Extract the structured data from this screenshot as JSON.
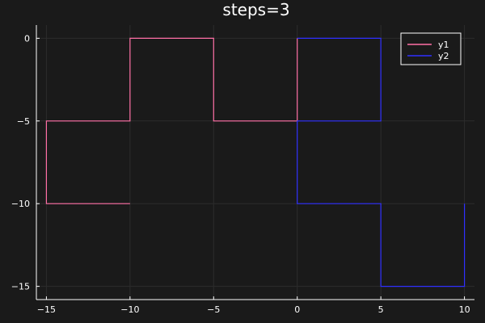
{
  "chart_data": {
    "type": "line",
    "title": "steps=3",
    "xlabel": "",
    "ylabel": "",
    "xlim": [
      -15.6,
      10.6
    ],
    "ylim": [
      -15.8,
      0.8
    ],
    "xticks": [
      -15,
      -10,
      -5,
      0,
      5,
      10
    ],
    "yticks": [
      0,
      -5,
      -10,
      -15
    ],
    "grid": true,
    "legend": "top-right",
    "series": [
      {
        "name": "y1",
        "color": "#ff70a6",
        "points": [
          [
            -10,
            -10
          ],
          [
            -15,
            -10
          ],
          [
            -15,
            -5
          ],
          [
            -10,
            -5
          ],
          [
            -10,
            0
          ],
          [
            -5,
            0
          ],
          [
            -5,
            -5
          ],
          [
            0,
            -5
          ],
          [
            0,
            0
          ]
        ]
      },
      {
        "name": "y2",
        "color": "#2f2fff",
        "points": [
          [
            0,
            0
          ],
          [
            5,
            0
          ],
          [
            5,
            -5
          ],
          [
            0,
            -5
          ],
          [
            0,
            -10
          ],
          [
            5,
            -10
          ],
          [
            5,
            -15
          ],
          [
            10,
            -15
          ],
          [
            10,
            -10
          ]
        ]
      }
    ]
  },
  "colors": {
    "background": "#1a1a1a",
    "axis": "#ffffff",
    "grid": "#2c2c2c",
    "legend_bg": "#1a1a1a",
    "legend_border": "#ffffff"
  }
}
